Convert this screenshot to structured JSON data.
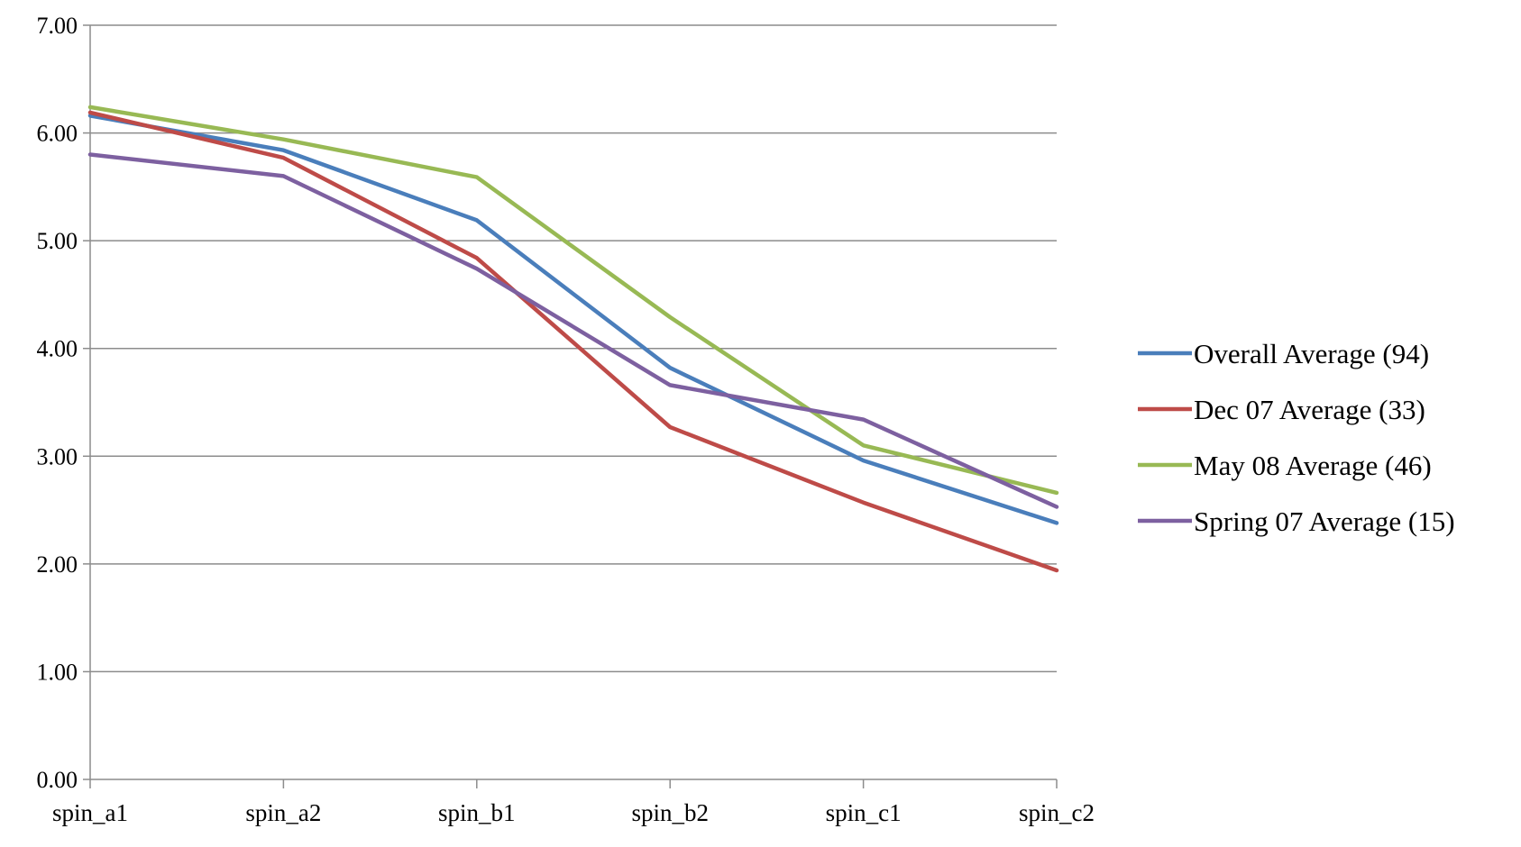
{
  "chart_data": {
    "type": "line",
    "title": "",
    "xlabel": "",
    "ylabel": "",
    "categories": [
      "spin_a1",
      "spin_a2",
      "spin_b1",
      "spin_b2",
      "spin_c1",
      "spin_c2"
    ],
    "ylim": [
      0,
      7
    ],
    "yticks": [
      "0.00",
      "1.00",
      "2.00",
      "3.00",
      "4.00",
      "5.00",
      "6.00",
      "7.00"
    ],
    "grid": true,
    "legend_position": "right",
    "series": [
      {
        "name": "Overall Average (94)",
        "color": "#4a7ebb",
        "values": [
          6.16,
          5.84,
          5.19,
          3.82,
          2.96,
          2.38
        ]
      },
      {
        "name": "Dec 07 Average (33)",
        "color": "#be4b48",
        "values": [
          6.19,
          5.77,
          4.84,
          3.27,
          2.57,
          1.94
        ]
      },
      {
        "name": "May 08 Average (46)",
        "color": "#98b954",
        "values": [
          6.24,
          5.94,
          5.59,
          4.29,
          3.1,
          2.66
        ]
      },
      {
        "name": "Spring 07 Average (15)",
        "color": "#7d60a0",
        "values": [
          5.8,
          5.6,
          4.74,
          3.66,
          3.34,
          2.53
        ]
      }
    ]
  }
}
